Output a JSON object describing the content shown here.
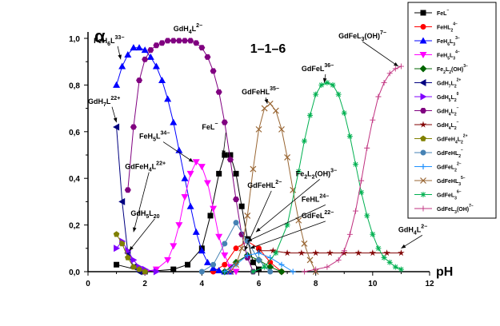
{
  "chart_data": {
    "type": "line",
    "title": "1–1–6",
    "ylabel": "α",
    "xlabel": "pH",
    "xlim": [
      0,
      12
    ],
    "ylim": [
      0,
      1.0
    ],
    "xticks": [
      "0",
      "2",
      "4",
      "6",
      "8",
      "10",
      "12"
    ],
    "yticks": [
      "0,0",
      "0,2",
      "0,4",
      "0,6",
      "0,8",
      "1,0"
    ],
    "grid": false,
    "legend_position": "right",
    "annotations": [
      {
        "text": "GdH4L2−",
        "x": 3.0,
        "y": 1.03,
        "ax": 3.0,
        "ay": 1.03
      },
      {
        "text": "FeH6L33−",
        "x": 0.2,
        "y": 0.98,
        "ax": 1.15,
        "ay": 0.91
      },
      {
        "text": "GdH7L22+",
        "x": 0.0,
        "y": 0.72,
        "ax": 1.0,
        "ay": 0.64
      },
      {
        "text": "FeH5L34−",
        "x": 1.8,
        "y": 0.57,
        "ax": 3.7,
        "ay": 0.47
      },
      {
        "text": "FeL−",
        "x": 4.0,
        "y": 0.61,
        "ax": 4.75,
        "ay": 0.5
      },
      {
        "text": "GdFeHL35−",
        "x": 5.4,
        "y": 0.76,
        "ax": 6.3,
        "ay": 0.72
      },
      {
        "text": "GdFeL36−",
        "x": 7.5,
        "y": 0.86,
        "ax": 8.3,
        "ay": 0.81
      },
      {
        "text": "GdFeL3(OH)7−",
        "x": 8.8,
        "y": 1.0,
        "ax": 10.9,
        "ay": 0.88
      },
      {
        "text": "GdFeH4L22+",
        "x": 1.3,
        "y": 0.44,
        "ax": 1.6,
        "ay": 0.17
      },
      {
        "text": "GdH5L20",
        "x": 1.5,
        "y": 0.24,
        "ax": 1.45,
        "ay": 0.09
      },
      {
        "text": "GdFeHL2−",
        "x": 5.6,
        "y": 0.36,
        "ax": 5.5,
        "ay": 0.09
      },
      {
        "text": "Fe2L2(OH)3−",
        "x": 7.3,
        "y": 0.41,
        "ax": 5.9,
        "ay": 0.17
      },
      {
        "text": "FeHL24−",
        "x": 7.5,
        "y": 0.3,
        "ax": 5.6,
        "ay": 0.13
      },
      {
        "text": "GdFeL22−",
        "x": 7.5,
        "y": 0.23,
        "ax": 5.7,
        "ay": 0.1
      },
      {
        "text": "GdH4L2−",
        "x": 10.9,
        "y": 0.17,
        "ax": 11.0,
        "ay": 0.1
      }
    ],
    "series": [
      {
        "name": "FeL−",
        "color": "#000000",
        "marker": "square",
        "x": [
          1.0,
          2.0,
          3.0,
          3.5,
          4.0,
          4.3,
          4.6,
          4.8,
          5.0,
          5.2,
          5.4,
          5.6,
          5.8,
          6.0
        ],
        "y": [
          0.03,
          0.0,
          0.01,
          0.03,
          0.1,
          0.24,
          0.42,
          0.5,
          0.5,
          0.42,
          0.28,
          0.14,
          0.04,
          0.01
        ]
      },
      {
        "name": "FeHL24−",
        "color": "#ff0000",
        "marker": "circle",
        "x": [
          4.4,
          4.8,
          5.2,
          5.6,
          6.0,
          6.4,
          6.8
        ],
        "y": [
          0.0,
          0.03,
          0.1,
          0.13,
          0.1,
          0.04,
          0.0
        ]
      },
      {
        "name": "FeH6L33−",
        "color": "#0000ff",
        "marker": "triangle-up",
        "x": [
          1.0,
          1.2,
          1.4,
          1.6,
          1.8,
          2.0,
          2.2,
          2.4,
          2.6,
          2.8,
          3.0,
          3.2,
          3.4,
          3.6,
          3.8,
          4.0,
          4.2,
          4.4,
          4.6,
          4.8,
          5.0
        ],
        "y": [
          0.8,
          0.88,
          0.93,
          0.96,
          0.96,
          0.95,
          0.92,
          0.88,
          0.82,
          0.74,
          0.64,
          0.52,
          0.4,
          0.28,
          0.17,
          0.09,
          0.04,
          0.015,
          0.005,
          0.0,
          0.0
        ]
      },
      {
        "name": "FeH5L34−",
        "color": "#ff00ff",
        "marker": "triangle-down",
        "x": [
          2.0,
          2.4,
          2.8,
          3.0,
          3.2,
          3.4,
          3.6,
          3.8,
          4.0,
          4.2,
          4.4,
          4.6,
          4.8,
          5.0,
          5.2
        ],
        "y": [
          0.0,
          0.01,
          0.05,
          0.11,
          0.2,
          0.32,
          0.42,
          0.47,
          0.45,
          0.38,
          0.27,
          0.15,
          0.07,
          0.02,
          0.0
        ]
      },
      {
        "name": "Fe2L2(OH)3−",
        "color": "#006400",
        "marker": "diamond",
        "x": [
          4.8,
          5.2,
          5.6,
          6.0,
          6.4,
          6.8
        ],
        "y": [
          0.0,
          0.04,
          0.07,
          0.05,
          0.02,
          0.0
        ]
      },
      {
        "name": "GdH7L22+",
        "color": "#000080",
        "marker": "triangle-left",
        "x": [
          1.0,
          1.2,
          1.4,
          1.6,
          1.8
        ],
        "y": [
          0.62,
          0.3,
          0.08,
          0.02,
          0.0
        ]
      },
      {
        "name": "GdH5L20",
        "color": "#8000ff",
        "marker": "triangle-right",
        "x": [
          1.0,
          1.2,
          1.4,
          1.6,
          1.8,
          2.0,
          2.4
        ],
        "y": [
          0.1,
          0.13,
          0.09,
          0.05,
          0.02,
          0.01,
          0.0
        ]
      },
      {
        "name": "GdH4L2−",
        "color": "#800080",
        "marker": "hexagon",
        "x": [
          1.4,
          1.6,
          1.8,
          2.0,
          2.2,
          2.4,
          2.6,
          2.8,
          3.0,
          3.2,
          3.4,
          3.6,
          3.8,
          4.0,
          4.2,
          4.4,
          4.6,
          4.8,
          5.0,
          5.2,
          5.4,
          5.6,
          5.8
        ],
        "y": [
          0.35,
          0.62,
          0.82,
          0.91,
          0.95,
          0.97,
          0.98,
          0.99,
          0.99,
          0.99,
          0.99,
          0.99,
          0.98,
          0.96,
          0.92,
          0.86,
          0.77,
          0.64,
          0.48,
          0.31,
          0.16,
          0.06,
          0.0
        ]
      },
      {
        "name": "GdH4L2−",
        "color": "#800000",
        "marker": "star",
        "x": [
          6.0,
          6.5,
          7.0,
          7.5,
          8.0,
          8.5,
          9.0,
          9.5,
          10.0,
          10.5,
          11.0
        ],
        "y": [
          0.09,
          0.09,
          0.08,
          0.08,
          0.08,
          0.08,
          0.08,
          0.08,
          0.08,
          0.08,
          0.08
        ]
      },
      {
        "name": "GdFeH4L22+",
        "color": "#808000",
        "marker": "pentagon",
        "x": [
          1.0,
          1.2,
          1.4,
          1.6,
          1.8,
          2.0
        ],
        "y": [
          0.16,
          0.12,
          0.06,
          0.02,
          0.01,
          0.0
        ]
      },
      {
        "name": "GdFeHL2−",
        "color": "#4682b4",
        "marker": "circle",
        "x": [
          4.0,
          4.4,
          4.8,
          5.2,
          5.6,
          6.0,
          6.4
        ],
        "y": [
          0.0,
          0.03,
          0.12,
          0.21,
          0.13,
          0.05,
          0.0
        ]
      },
      {
        "name": "GdFeL22−",
        "color": "#1e90ff",
        "marker": "plus",
        "x": [
          4.8,
          5.2,
          5.6,
          6.0,
          6.4,
          6.8,
          7.2
        ],
        "y": [
          0.0,
          0.03,
          0.07,
          0.08,
          0.06,
          0.03,
          0.0
        ]
      },
      {
        "name": "GdFeHL35−",
        "color": "#996633",
        "marker": "x",
        "x": [
          5.0,
          5.2,
          5.4,
          5.6,
          5.8,
          6.0,
          6.2,
          6.4,
          6.6,
          6.8,
          7.0,
          7.2,
          7.4,
          7.6,
          7.8,
          8.0
        ],
        "y": [
          0.0,
          0.03,
          0.1,
          0.24,
          0.44,
          0.61,
          0.7,
          0.72,
          0.69,
          0.61,
          0.49,
          0.35,
          0.22,
          0.12,
          0.05,
          0.0
        ]
      },
      {
        "name": "GdFeL36−",
        "color": "#00b050",
        "marker": "asterisk",
        "x": [
          5.8,
          6.2,
          6.6,
          7.0,
          7.4,
          7.6,
          7.8,
          8.0,
          8.2,
          8.4,
          8.6,
          8.8,
          9.0,
          9.2,
          9.4,
          9.6,
          9.8,
          10.0,
          10.2,
          10.4,
          10.6,
          10.8,
          11.0
        ],
        "y": [
          0.0,
          0.02,
          0.08,
          0.2,
          0.43,
          0.56,
          0.67,
          0.76,
          0.8,
          0.81,
          0.8,
          0.76,
          0.68,
          0.58,
          0.46,
          0.34,
          0.24,
          0.16,
          0.1,
          0.06,
          0.04,
          0.02,
          0.01
        ]
      },
      {
        "name": "GdFeL3(OH)7−",
        "color": "#c0307f",
        "marker": "dash",
        "x": [
          7.6,
          8.0,
          8.4,
          8.8,
          9.0,
          9.2,
          9.4,
          9.6,
          9.8,
          10.0,
          10.2,
          10.4,
          10.6,
          10.8,
          11.0
        ],
        "y": [
          0.0,
          0.01,
          0.02,
          0.05,
          0.09,
          0.16,
          0.26,
          0.39,
          0.53,
          0.65,
          0.75,
          0.81,
          0.85,
          0.87,
          0.88
        ]
      }
    ]
  },
  "legend": {
    "entries": [
      {
        "formula": "FeL",
        "sup": "−",
        "sub": ""
      },
      {
        "formula": "FeHL2",
        "sup": "4−",
        "sub": ""
      },
      {
        "formula": "FeH6L3",
        "sup": "3−",
        "sub": ""
      },
      {
        "formula": "FeH5L3",
        "sup": "4−",
        "sub": ""
      },
      {
        "formula": "Fe2L2(OH)",
        "sup": "3−",
        "sub": ""
      },
      {
        "formula": "GdH7L2",
        "sup": "2+",
        "sub": ""
      },
      {
        "formula": "GdH5L2",
        "sup": "0",
        "sub": ""
      },
      {
        "formula": "GdH4L2",
        "sup": "−",
        "sub": ""
      },
      {
        "formula": "GdH4L2",
        "sup": "−",
        "sub": ""
      },
      {
        "formula": "GdFeH4L2",
        "sup": "2+",
        "sub": ""
      },
      {
        "formula": "GdFeHL2",
        "sup": "−",
        "sub": ""
      },
      {
        "formula": "GdFeL2",
        "sup": "2−",
        "sub": ""
      },
      {
        "formula": "GdFeHL3",
        "sup": "5−",
        "sub": ""
      },
      {
        "formula": "GdFeL3",
        "sup": "6−",
        "sub": ""
      },
      {
        "formula": "GdFeL3(OH)",
        "sup": "7−",
        "sub": ""
      }
    ]
  }
}
